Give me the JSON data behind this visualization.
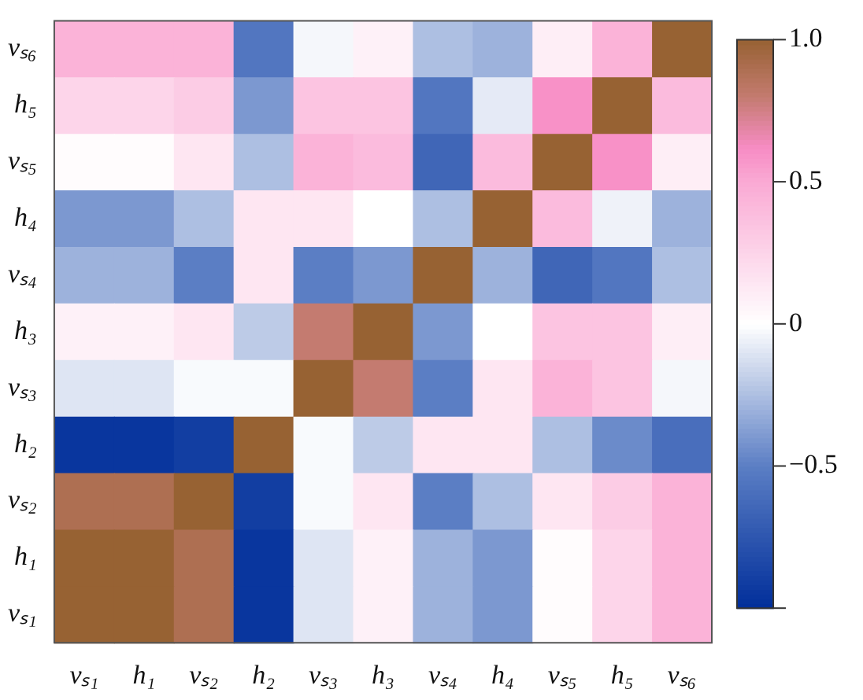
{
  "chart_data": {
    "type": "heatmap",
    "categories": [
      "vₛ₁",
      "h₁",
      "vₛ₂",
      "h₂",
      "vₛ₃",
      "h₃",
      "vₛ₄",
      "h₄",
      "vₛ₅",
      "h₅",
      "vₛ₆"
    ],
    "y_categories": [
      "vₛ₆",
      "h₅",
      "vₛ₅",
      "h₄",
      "vₛ₄",
      "h₃",
      "vₛ₃",
      "h₂",
      "vₛ₂",
      "h₁",
      "vₛ₁"
    ],
    "cells": [
      [
        0.45,
        0.45,
        0.45,
        -0.55,
        -0.03,
        0.08,
        -0.25,
        -0.3,
        0.1,
        0.45,
        1
      ],
      [
        0.25,
        0.25,
        0.3,
        -0.4,
        0.35,
        0.35,
        -0.55,
        -0.08,
        0.6,
        1,
        0.4
      ],
      [
        0.02,
        0.02,
        0.15,
        -0.25,
        0.45,
        0.4,
        -0.65,
        0.4,
        1,
        0.6,
        0.1
      ],
      [
        -0.4,
        -0.4,
        -0.25,
        0.15,
        0.15,
        0,
        -0.25,
        1,
        0.4,
        -0.05,
        -0.3
      ],
      [
        -0.3,
        -0.3,
        -0.5,
        0.15,
        -0.5,
        -0.4,
        1,
        -0.3,
        -0.65,
        -0.55,
        -0.25
      ],
      [
        0.08,
        0.08,
        0.15,
        -0.2,
        0.8,
        1,
        -0.4,
        0,
        0.35,
        0.35,
        0.1
      ],
      [
        -0.1,
        -0.1,
        -0.02,
        -0.02,
        1,
        0.8,
        -0.5,
        0.15,
        0.45,
        0.35,
        -0.03
      ],
      [
        -0.95,
        -0.95,
        -0.9,
        1,
        -0.02,
        -0.2,
        0.15,
        0.15,
        -0.25,
        -0.45,
        -0.6
      ],
      [
        0.9,
        0.9,
        1,
        -0.9,
        -0.02,
        0.15,
        -0.5,
        -0.25,
        0.15,
        0.3,
        0.45
      ],
      [
        1,
        1,
        0.9,
        -0.95,
        -0.1,
        0.08,
        -0.3,
        -0.4,
        0.02,
        0.25,
        0.45
      ],
      [
        1,
        1,
        0.9,
        -0.95,
        -0.1,
        0.08,
        -0.3,
        -0.4,
        0.02,
        0.25,
        0.45
      ]
    ],
    "clim": [
      -1,
      1
    ],
    "cticks": [
      {
        "value": -1,
        "label": null
      },
      -0.5,
      0,
      0.5,
      {
        "value": 1,
        "label": "1.0"
      }
    ]
  }
}
